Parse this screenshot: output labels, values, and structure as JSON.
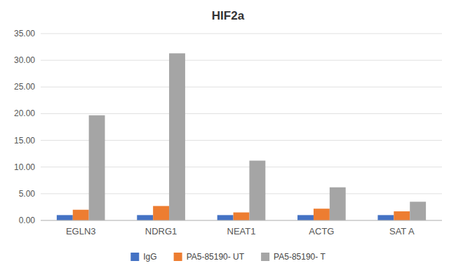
{
  "chart_data": {
    "type": "bar",
    "title": "HIF2a",
    "categories": [
      "EGLN3",
      "NDRG1",
      "NEAT1",
      "ACTG",
      "SAT A"
    ],
    "series": [
      {
        "name": "IgG",
        "color": "#4472c4",
        "values": [
          1.0,
          1.0,
          1.0,
          1.0,
          1.0
        ]
      },
      {
        "name": "PA5-85190- UT",
        "color": "#ed7d31",
        "values": [
          2.0,
          2.7,
          1.5,
          2.2,
          1.7
        ]
      },
      {
        "name": "PA5-85190- T",
        "color": "#a5a5a5",
        "values": [
          19.7,
          31.3,
          11.2,
          6.2,
          3.5
        ]
      }
    ],
    "ylim": [
      0,
      35
    ],
    "yticks": [
      {
        "value": 0.0,
        "label": "0.00"
      },
      {
        "value": 5.0,
        "label": "5.00"
      },
      {
        "value": 10.0,
        "label": "10.00"
      },
      {
        "value": 15.0,
        "label": "15.00"
      },
      {
        "value": 20.0,
        "label": "20.00"
      },
      {
        "value": 25.0,
        "label": "25.00"
      },
      {
        "value": 30.0,
        "label": "30.00"
      },
      {
        "value": 35.0,
        "label": "35.00"
      }
    ],
    "grid": true,
    "legend": "bottom"
  }
}
